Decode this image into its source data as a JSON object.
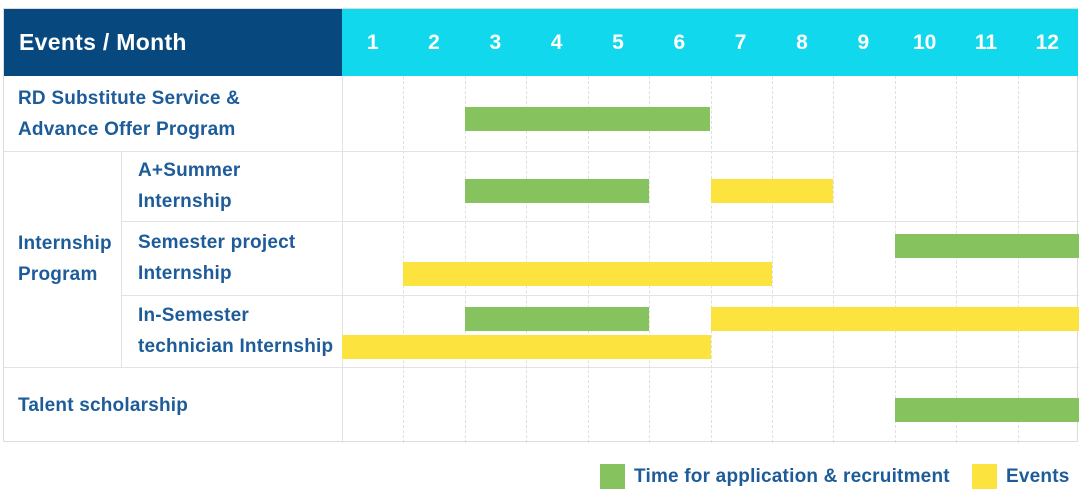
{
  "header": {
    "label": "Events / Month",
    "months": [
      "1",
      "2",
      "3",
      "4",
      "5",
      "6",
      "7",
      "8",
      "9",
      "10",
      "11",
      "12"
    ]
  },
  "colors": {
    "navy": "#07497e",
    "cyan": "#12d8ed",
    "blue_text": "#1d5c99",
    "green": "#86c35f",
    "yellow": "#fde33d"
  },
  "legend": [
    {
      "swatch": "green",
      "label": "Time for application & recruitment"
    },
    {
      "swatch": "yellow",
      "label": "Events"
    }
  ],
  "chart_data": {
    "type": "gantt",
    "x_axis": {
      "unit": "month",
      "ticks": [
        1,
        2,
        3,
        4,
        5,
        6,
        7,
        8,
        9,
        10,
        11,
        12
      ]
    },
    "legend": [
      {
        "key": "green",
        "color": "#86c35f",
        "label": "Time for application & recruitment"
      },
      {
        "key": "yellow",
        "color": "#fde33d",
        "label": "Events"
      }
    ],
    "group_label": "Internship Program",
    "group_label_lines": [
      "Internship",
      "Program"
    ],
    "rows": [
      {
        "group": "",
        "label": "RD Substitute Service & Advance Offer Program",
        "label_lines": [
          "RD Substitute Service &",
          "Advance Offer Program"
        ],
        "lines": 1,
        "bars": [
          {
            "key": "green",
            "start": 3,
            "end": 6,
            "line": 0
          }
        ]
      },
      {
        "group": "Internship Program",
        "label": "A+Summer Internship",
        "label_lines": [
          "A+Summer",
          "Internship"
        ],
        "lines": 1,
        "bars": [
          {
            "key": "green",
            "start": 3,
            "end": 5,
            "line": 0
          },
          {
            "key": "yellow",
            "start": 7,
            "end": 8,
            "line": 0
          }
        ]
      },
      {
        "group": "Internship Program",
        "label": "Semester project Internship",
        "label_lines": [
          "Semester project",
          "Internship"
        ],
        "lines": 2,
        "bars": [
          {
            "key": "green",
            "start": 10,
            "end": 12,
            "line": 0
          },
          {
            "key": "yellow",
            "start": 2,
            "end": 7,
            "line": 1
          }
        ]
      },
      {
        "group": "Internship Program",
        "label": "In-Semester technician Internship",
        "label_lines": [
          "In-Semester",
          "technician Internship"
        ],
        "lines": 2,
        "bars": [
          {
            "key": "green",
            "start": 3,
            "end": 5,
            "line": 0
          },
          {
            "key": "yellow",
            "start": 7,
            "end": 12,
            "line": 0
          },
          {
            "key": "yellow",
            "start": 1,
            "end": 6,
            "line": 1
          }
        ]
      },
      {
        "group": "",
        "label": "Talent scholarship",
        "label_lines": [
          "Talent scholarship"
        ],
        "lines": 1,
        "bars": [
          {
            "key": "green",
            "start": 10,
            "end": 12,
            "line": 0
          }
        ]
      }
    ]
  }
}
